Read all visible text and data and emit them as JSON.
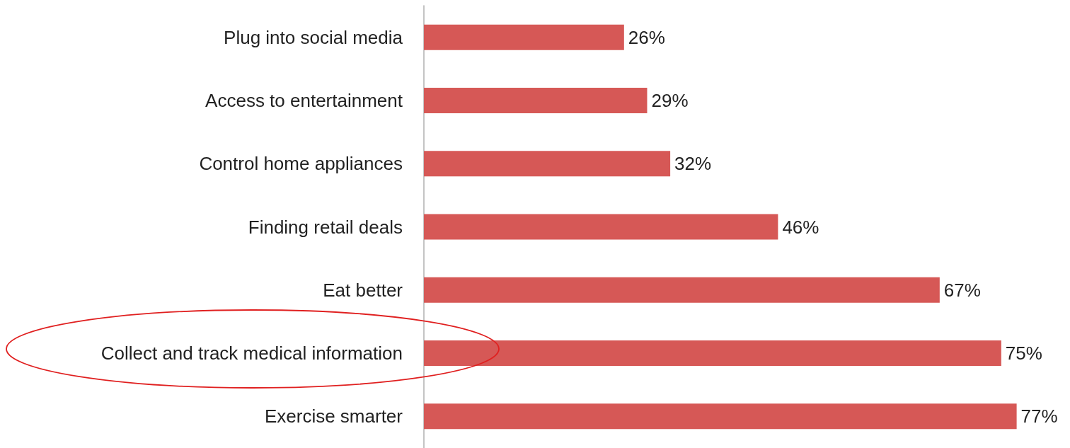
{
  "chart_data": {
    "type": "bar",
    "orientation": "horizontal",
    "categories": [
      "Plug into social media",
      "Access to entertainment",
      "Control home appliances",
      "Finding retail deals",
      "Eat better",
      "Collect and track medical information",
      "Exercise smarter"
    ],
    "values": [
      26,
      29,
      32,
      46,
      67,
      75,
      77
    ],
    "value_labels": [
      "26%",
      "29%",
      "32%",
      "46%",
      "67%",
      "75%",
      "77%"
    ],
    "color": "#d65856"
  }
}
